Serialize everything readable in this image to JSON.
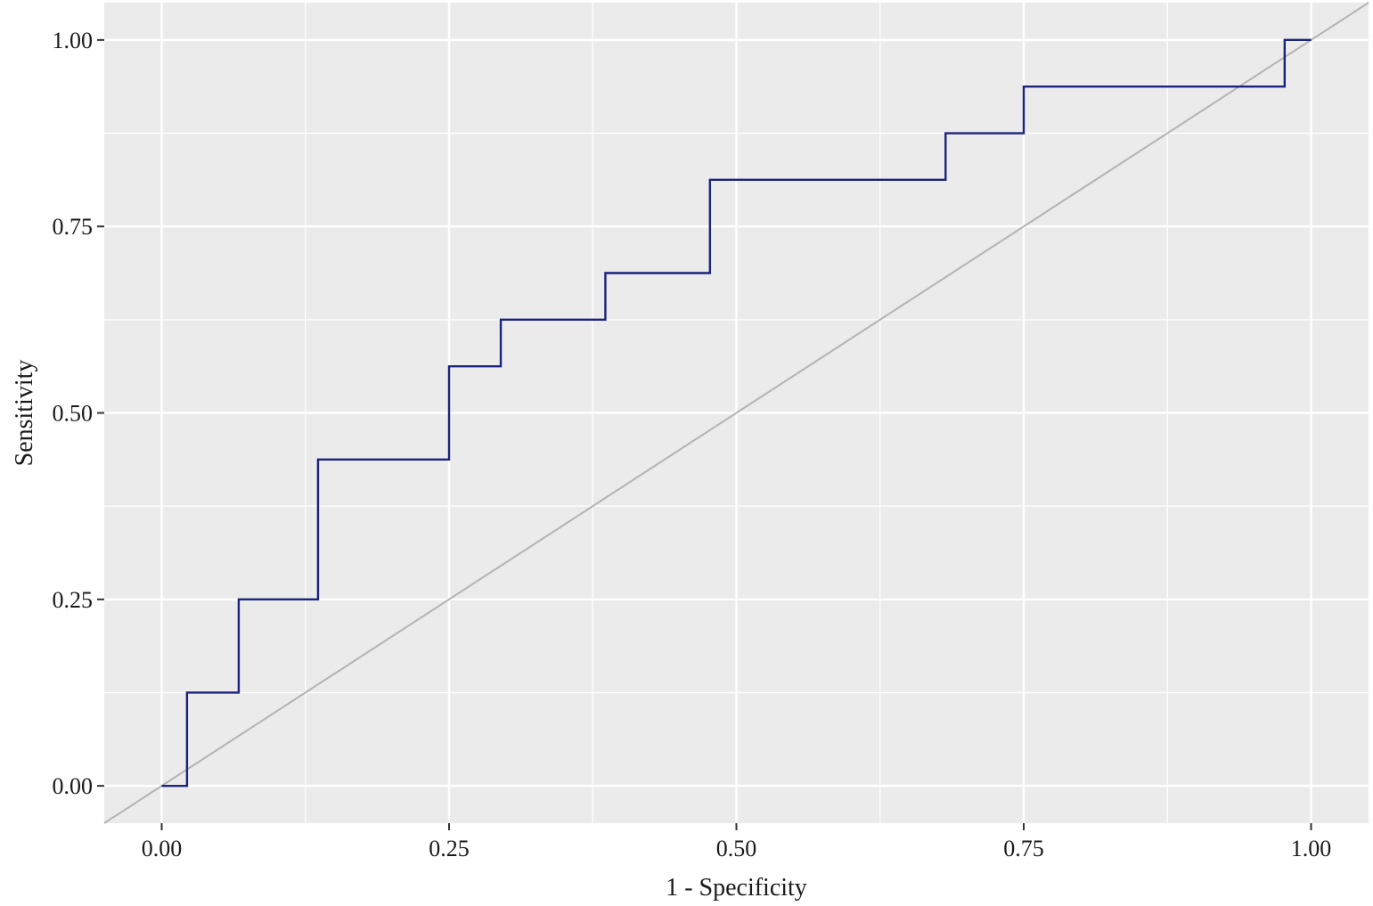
{
  "chart_data": {
    "type": "line",
    "xlabel": "1 - Specificity",
    "ylabel": "Sensitivity",
    "xlim": [
      -0.05,
      1.05
    ],
    "ylim": [
      -0.05,
      1.05
    ],
    "x_ticks": [
      0,
      0.25,
      0.5,
      0.75,
      1
    ],
    "x_tick_labels": [
      "0.00",
      "0.25",
      "0.50",
      "0.75",
      "1.00"
    ],
    "y_ticks": [
      0,
      0.25,
      0.5,
      0.75,
      1
    ],
    "y_tick_labels": [
      "0.00",
      "0.25",
      "0.50",
      "0.75",
      "1.00"
    ],
    "grid": true,
    "series": [
      {
        "style": "step",
        "color": "#1a237e",
        "x": [
          0,
          0.022,
          0.022,
          0.067,
          0.067,
          0.136,
          0.136,
          0.25,
          0.25,
          0.295,
          0.295,
          0.386,
          0.386,
          0.477,
          0.477,
          0.682,
          0.682,
          0.75,
          0.75,
          0.977,
          0.977,
          1.0
        ],
        "y": [
          0,
          0,
          0.125,
          0.125,
          0.25,
          0.25,
          0.4375,
          0.4375,
          0.5625,
          0.5625,
          0.625,
          0.625,
          0.6875,
          0.6875,
          0.8125,
          0.8125,
          0.875,
          0.875,
          0.9375,
          0.9375,
          1.0,
          1.0
        ]
      }
    ],
    "reference_line": {
      "slope": 1,
      "intercept": 0,
      "color": "#b3b3b3"
    },
    "colors": {
      "panel_background": "#ebebeb",
      "grid_line": "#ffffff",
      "tick_mark": "#333333"
    }
  }
}
